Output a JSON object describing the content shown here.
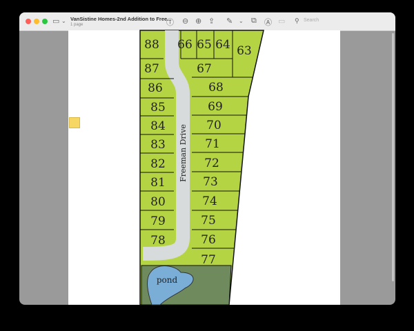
{
  "window": {
    "title": "VanSistine Homes-2nd Addition to Free...",
    "subtitle": "1 page",
    "search_placeholder": "Search"
  },
  "toolbar": {
    "icons": [
      "sidebar-icon",
      "chevron-down-icon",
      "info-icon",
      "zoom-out-icon",
      "zoom-in-icon",
      "share-icon",
      "markup-pen-icon",
      "chevron-down-icon",
      "rotate-icon",
      "annotate-icon",
      "form-icon",
      "search-icon"
    ]
  },
  "colors": {
    "lot": "#b5d443",
    "road": "#d8dbdb",
    "pond": "#7aaed6",
    "open_space": "#6f8a5c"
  },
  "map": {
    "street": "Freeman Drive",
    "pond": "pond",
    "lots": [
      "88",
      "87",
      "86",
      "85",
      "84",
      "83",
      "82",
      "81",
      "80",
      "79",
      "78",
      "66",
      "65",
      "64",
      "63",
      "67",
      "68",
      "69",
      "70",
      "71",
      "72",
      "73",
      "74",
      "75",
      "76",
      "77"
    ]
  }
}
